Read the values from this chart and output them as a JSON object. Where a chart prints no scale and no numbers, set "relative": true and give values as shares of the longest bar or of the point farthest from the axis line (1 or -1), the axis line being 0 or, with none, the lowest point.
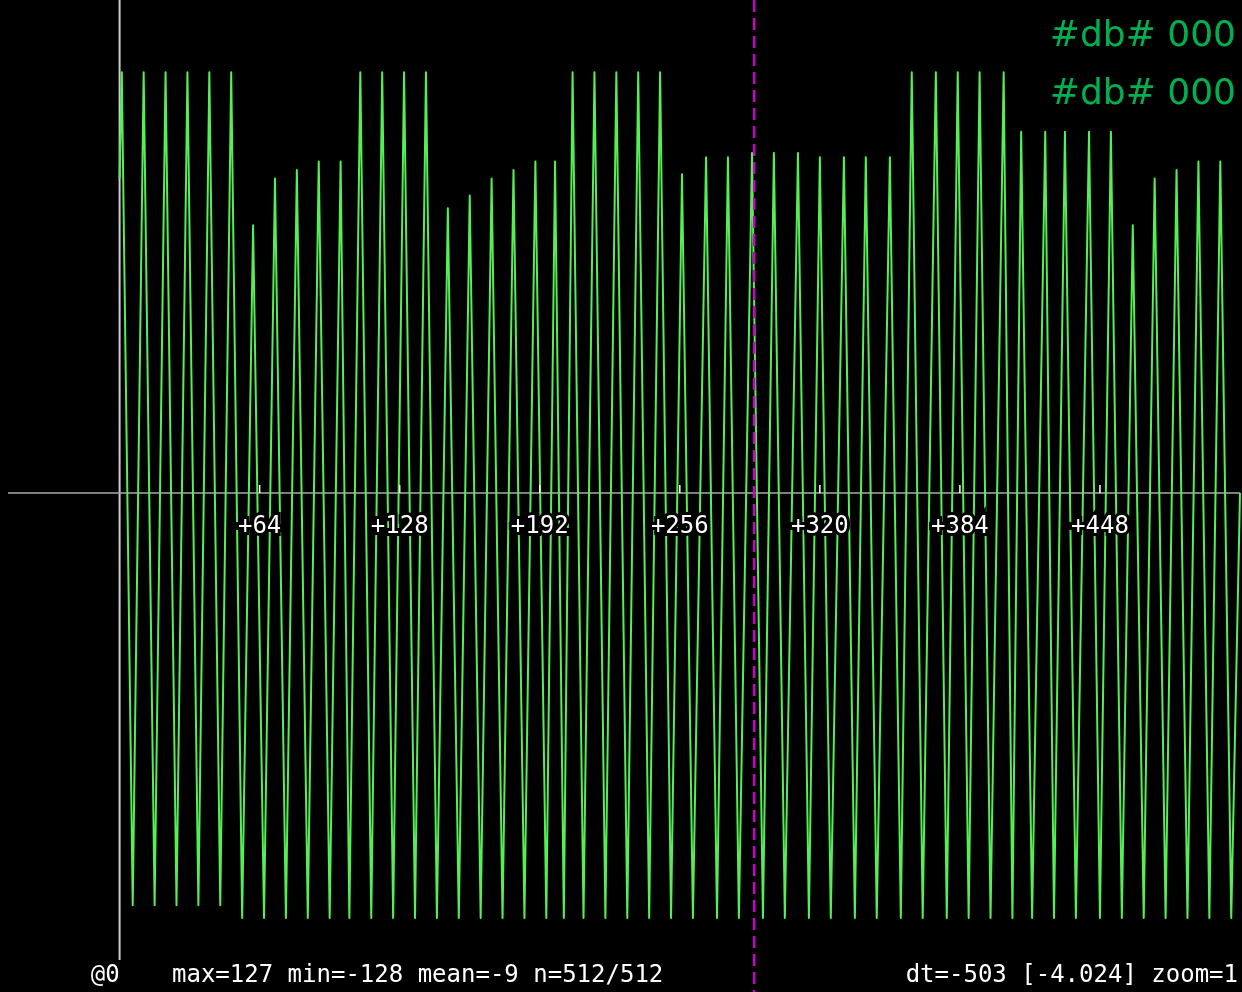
{
  "chart_data": {
    "type": "line",
    "relative": true,
    "xlim": [
      -51,
      512
    ],
    "xticks": [
      {
        "value": 64,
        "label": "+64"
      },
      {
        "value": 128,
        "label": "+128"
      },
      {
        "value": 192,
        "label": "+192"
      },
      {
        "value": 256,
        "label": "+256"
      },
      {
        "value": 320,
        "label": "+320"
      },
      {
        "value": 384,
        "label": "+384"
      },
      {
        "value": 448,
        "label": "+448"
      }
    ],
    "tick_labels": "x",
    "grid": false,
    "annotations": [
      "#db# 000",
      "#db# 000",
      "@0",
      "max=127 min=-128 mean=-9 n=512/512",
      "dt=-503 [-4.024] zoom=1"
    ],
    "ref_lines": [
      {
        "axis": "x",
        "value": 290,
        "color": "#cc00cc",
        "line_style": "dashed"
      }
    ],
    "series": [
      {
        "color": "#55ee55",
        "x": [
          0,
          1,
          6,
          11,
          16,
          21,
          26,
          31,
          36,
          41,
          46,
          51,
          56,
          61,
          66,
          71,
          76,
          81,
          86,
          91,
          96,
          101,
          105,
          110,
          115,
          120,
          125,
          130,
          135,
          140,
          145,
          150,
          155,
          160,
          165,
          170,
          175,
          180,
          185,
          190,
          195,
          199,
          203,
          207,
          212,
          217,
          222,
          227,
          232,
          237,
          242,
          247,
          252,
          257,
          262,
          268,
          273,
          278,
          283,
          289,
          294,
          299,
          304,
          310,
          315,
          320,
          325,
          331,
          336,
          341,
          346,
          352,
          357,
          362,
          367,
          373,
          378,
          383,
          388,
          393,
          398,
          404,
          408,
          412,
          417,
          423,
          427,
          432,
          437,
          443,
          448,
          453,
          458,
          463,
          468,
          473,
          478,
          483,
          488,
          493,
          498,
          503,
          508,
          512
        ],
        "values": [
          0.74,
          0.99,
          -0.97,
          0.99,
          -0.97,
          0.99,
          -0.97,
          0.99,
          -0.97,
          0.99,
          -0.97,
          0.99,
          -1,
          0.63,
          -1,
          0.74,
          -1,
          0.76,
          -1,
          0.78,
          -1,
          0.78,
          -1,
          0.99,
          -1,
          0.99,
          -1,
          0.99,
          -1,
          0.99,
          -1,
          0.67,
          -1,
          0.7,
          -1,
          0.74,
          -1,
          0.76,
          -1,
          0.78,
          -1,
          0.78,
          -1,
          0.99,
          -1,
          0.99,
          -1,
          0.99,
          -1,
          0.99,
          -1,
          0.99,
          -1,
          0.75,
          -1,
          0.79,
          -1,
          0.79,
          -1,
          0.8,
          -1,
          0.8,
          -1,
          0.8,
          -1,
          0.79,
          -1,
          0.79,
          -1,
          0.79,
          -1,
          0.79,
          -1,
          0.99,
          -1,
          0.99,
          -1,
          0.99,
          -1,
          0.99,
          -1,
          0.99,
          -1,
          0.85,
          -1,
          0.85,
          -1,
          0.85,
          -1,
          0.85,
          -1,
          0.85,
          -1,
          0.63,
          -1,
          0.74,
          -1,
          0.76,
          -1,
          0.78,
          -1,
          0.78,
          -1,
          0
        ]
      }
    ]
  }
}
